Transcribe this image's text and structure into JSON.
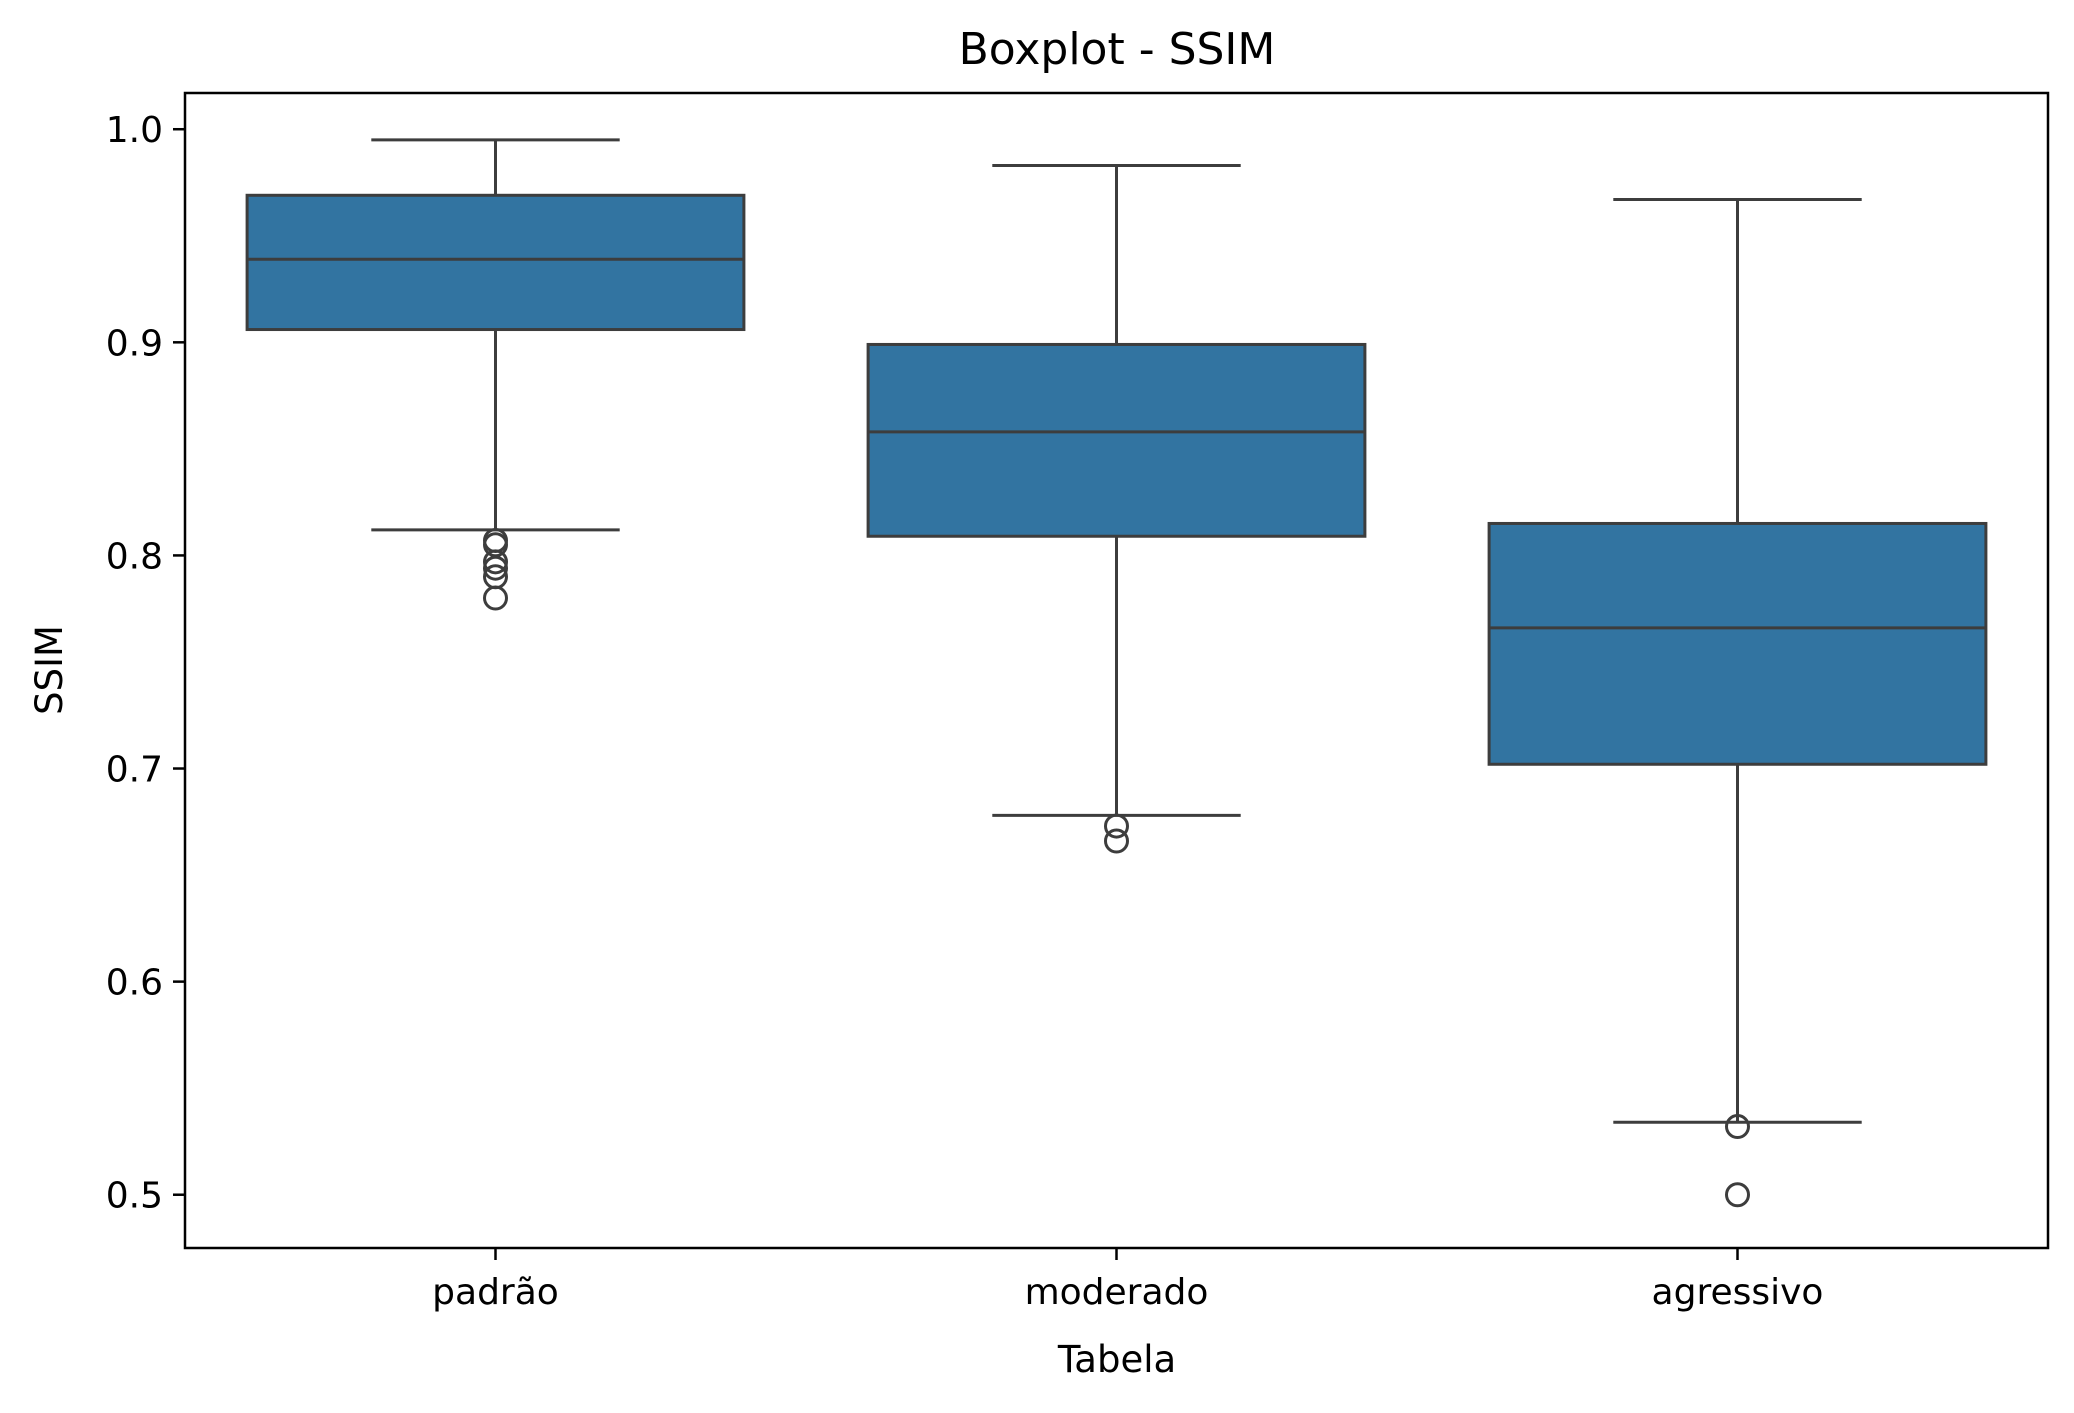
{
  "chart_data": {
    "type": "box",
    "title": "Boxplot - SSIM",
    "xlabel": "Tabela",
    "ylabel": "SSIM",
    "ylim": [
      0.475,
      1.017
    ],
    "yticks": [
      0.5,
      0.6,
      0.7,
      0.8,
      0.9,
      1.0
    ],
    "ytick_labels": [
      "0.5",
      "0.6",
      "0.7",
      "0.8",
      "0.9",
      "1.0"
    ],
    "grid": false,
    "box_color": "#3274a1",
    "line_color": "#3d3d3d",
    "categories": [
      "padrão",
      "moderado",
      "agressivo"
    ],
    "boxes": [
      {
        "category": "padrão",
        "whisker_low": 0.812,
        "q1": 0.906,
        "median": 0.939,
        "q3": 0.969,
        "whisker_high": 0.995,
        "outliers": [
          0.807,
          0.805,
          0.797,
          0.794,
          0.79,
          0.78
        ]
      },
      {
        "category": "moderado",
        "whisker_low": 0.678,
        "q1": 0.809,
        "median": 0.858,
        "q3": 0.899,
        "whisker_high": 0.983,
        "outliers": [
          0.673,
          0.666
        ]
      },
      {
        "category": "agressivo",
        "whisker_low": 0.534,
        "q1": 0.702,
        "median": 0.766,
        "q3": 0.815,
        "whisker_high": 0.967,
        "outliers": [
          0.532,
          0.5
        ]
      }
    ]
  }
}
